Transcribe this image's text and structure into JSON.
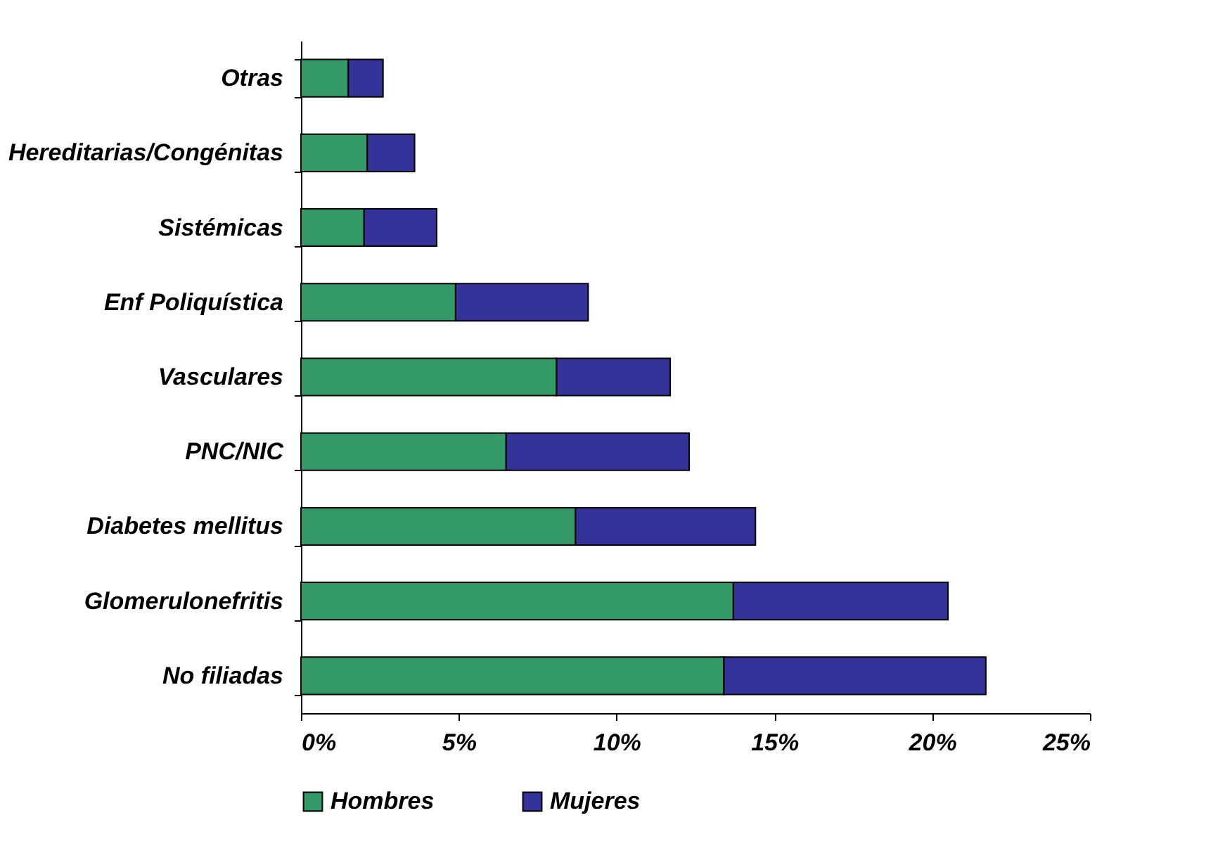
{
  "chart_data": {
    "type": "bar",
    "orientation": "horizontal",
    "stacked": true,
    "categories": [
      "Otras",
      "Hereditarias/Congénitas",
      "Sistémicas",
      "Enf Poliquística",
      "Vasculares",
      "PNC/NIC",
      "Diabetes mellitus",
      "Glomerulonefritis",
      "No filiadas"
    ],
    "series": [
      {
        "name": "Hombres",
        "color": "#339966",
        "values": [
          1.5,
          2.1,
          2.0,
          4.9,
          8.1,
          6.5,
          8.7,
          13.7,
          13.4
        ]
      },
      {
        "name": "Mujeres",
        "color": "#333399",
        "values": [
          1.1,
          1.5,
          2.3,
          4.2,
          3.6,
          5.8,
          5.7,
          6.8,
          8.3
        ]
      }
    ],
    "xlim": [
      0,
      25
    ],
    "xticks": [
      {
        "value": 0,
        "label": "0%"
      },
      {
        "value": 5,
        "label": "5%"
      },
      {
        "value": 10,
        "label": "10%"
      },
      {
        "value": 15,
        "label": "15%"
      },
      {
        "value": 20,
        "label": "20%"
      },
      {
        "value": 25,
        "label": "25%"
      }
    ],
    "grid": false,
    "legend": "bottom"
  }
}
